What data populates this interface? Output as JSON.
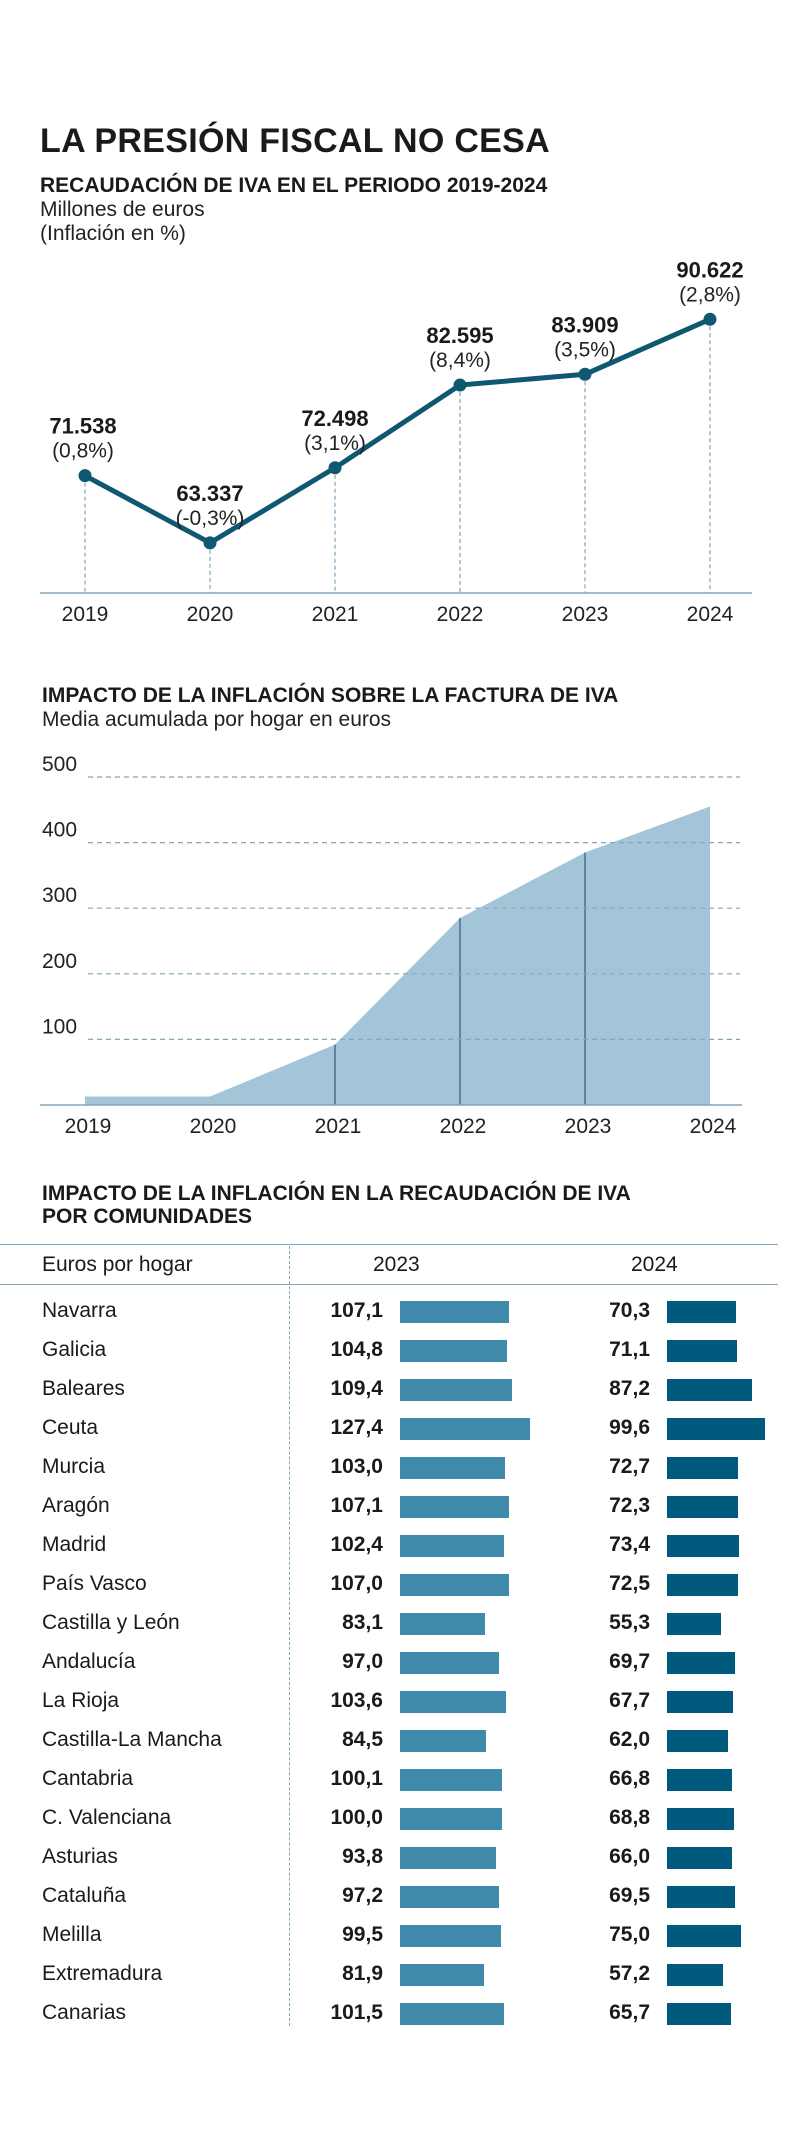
{
  "main_title": "LA PRESIÓN FISCAL NO CESA",
  "section1": {
    "title": "RECAUDACIÓN DE IVA EN EL PERIODO 2019-2024",
    "subtitle1": "Millones de euros",
    "subtitle2": "(Inflación en %)"
  },
  "section2": {
    "title": "IMPACTO DE LA INFLACIÓN SOBRE LA FACTURA DE IVA",
    "subtitle": "Media acumulada por hogar en euros"
  },
  "section3": {
    "title_line1": "IMPACTO DE LA INFLACIÓN EN LA RECAUDACIÓN DE IVA",
    "title_line2": "POR COMUNIDADES",
    "column_label": "Euros por hogar",
    "col_2023": "2023",
    "col_2024": "2024"
  },
  "colors": {
    "line": "#0e5872",
    "area": "#a4c4d8",
    "area_divider": "#2d5f7a",
    "bar_2023": "#3f8aaa",
    "bar_2024": "#005a7d",
    "axis": "#7fa8bd"
  },
  "chart_data": [
    {
      "type": "line",
      "title": "RECAUDACIÓN DE IVA EN EL PERIODO 2019-2024",
      "ylabel": "Millones de euros",
      "categories": [
        "2019",
        "2020",
        "2021",
        "2022",
        "2023",
        "2024"
      ],
      "values": [
        71538,
        63337,
        72498,
        82595,
        83909,
        90622
      ],
      "value_labels": [
        "71.538",
        "63.337",
        "72.498",
        "82.595",
        "83.909",
        "90.622"
      ],
      "inflation_labels": [
        "(0,8%)",
        "(-0,3%)",
        "(3,1%)",
        "(8,4%)",
        "(3,5%)",
        "(2,8%)"
      ],
      "ylim": [
        61000,
        92000
      ]
    },
    {
      "type": "area",
      "title": "IMPACTO DE LA INFLACIÓN SOBRE LA FACTURA DE IVA",
      "ylabel": "Media acumulada por hogar en euros",
      "categories": [
        "2019",
        "2020",
        "2021",
        "2022",
        "2023",
        "2024"
      ],
      "values": [
        13,
        13,
        92,
        285,
        385,
        455
      ],
      "yticks": [
        100,
        200,
        300,
        400,
        500
      ],
      "ylim": [
        0,
        500
      ],
      "grid": true
    },
    {
      "type": "bar",
      "title": "IMPACTO DE LA INFLACIÓN EN LA RECAUDACIÓN DE IVA POR COMUNIDADES",
      "xlabel": "Euros por hogar",
      "categories": [
        "Navarra",
        "Galicia",
        "Baleares",
        "Ceuta",
        "Murcia",
        "Aragón",
        "Madrid",
        "País Vasco",
        "Castilla y León",
        "Andalucía",
        "La Rioja",
        "Castilla-La Mancha",
        "Cantabria",
        "C. Valenciana",
        "Asturias",
        "Cataluña",
        "Melilla",
        "Extremadura",
        "Canarias"
      ],
      "series": [
        {
          "name": "2023",
          "values": [
            107.1,
            104.8,
            109.4,
            127.4,
            103.0,
            107.1,
            102.4,
            107.0,
            83.1,
            97.0,
            103.6,
            84.5,
            100.1,
            100.0,
            93.8,
            97.2,
            99.5,
            81.9,
            101.5
          ],
          "labels": [
            "107,1",
            "104,8",
            "109,4",
            "127,4",
            "103,0",
            "107,1",
            "102,4",
            "107,0",
            "83,1",
            "97,0",
            "103,6",
            "84,5",
            "100,1",
            "100,0",
            "93,8",
            "97,2",
            "99,5",
            "81,9",
            "101,5"
          ]
        },
        {
          "name": "2024",
          "values": [
            70.3,
            71.1,
            87.2,
            99.6,
            72.7,
            72.3,
            73.4,
            72.5,
            55.3,
            69.7,
            67.7,
            62.0,
            66.8,
            68.8,
            66.0,
            69.5,
            75.0,
            57.2,
            65.7
          ],
          "labels": [
            "70,3",
            "71,1",
            "87,2",
            "99,6",
            "72,7",
            "72,3",
            "73,4",
            "72,5",
            "55,3",
            "69,7",
            "67,7",
            "62,0",
            "66,8",
            "68,8",
            "66,0",
            "69,5",
            "75,0",
            "57,2",
            "65,7"
          ]
        }
      ]
    }
  ]
}
